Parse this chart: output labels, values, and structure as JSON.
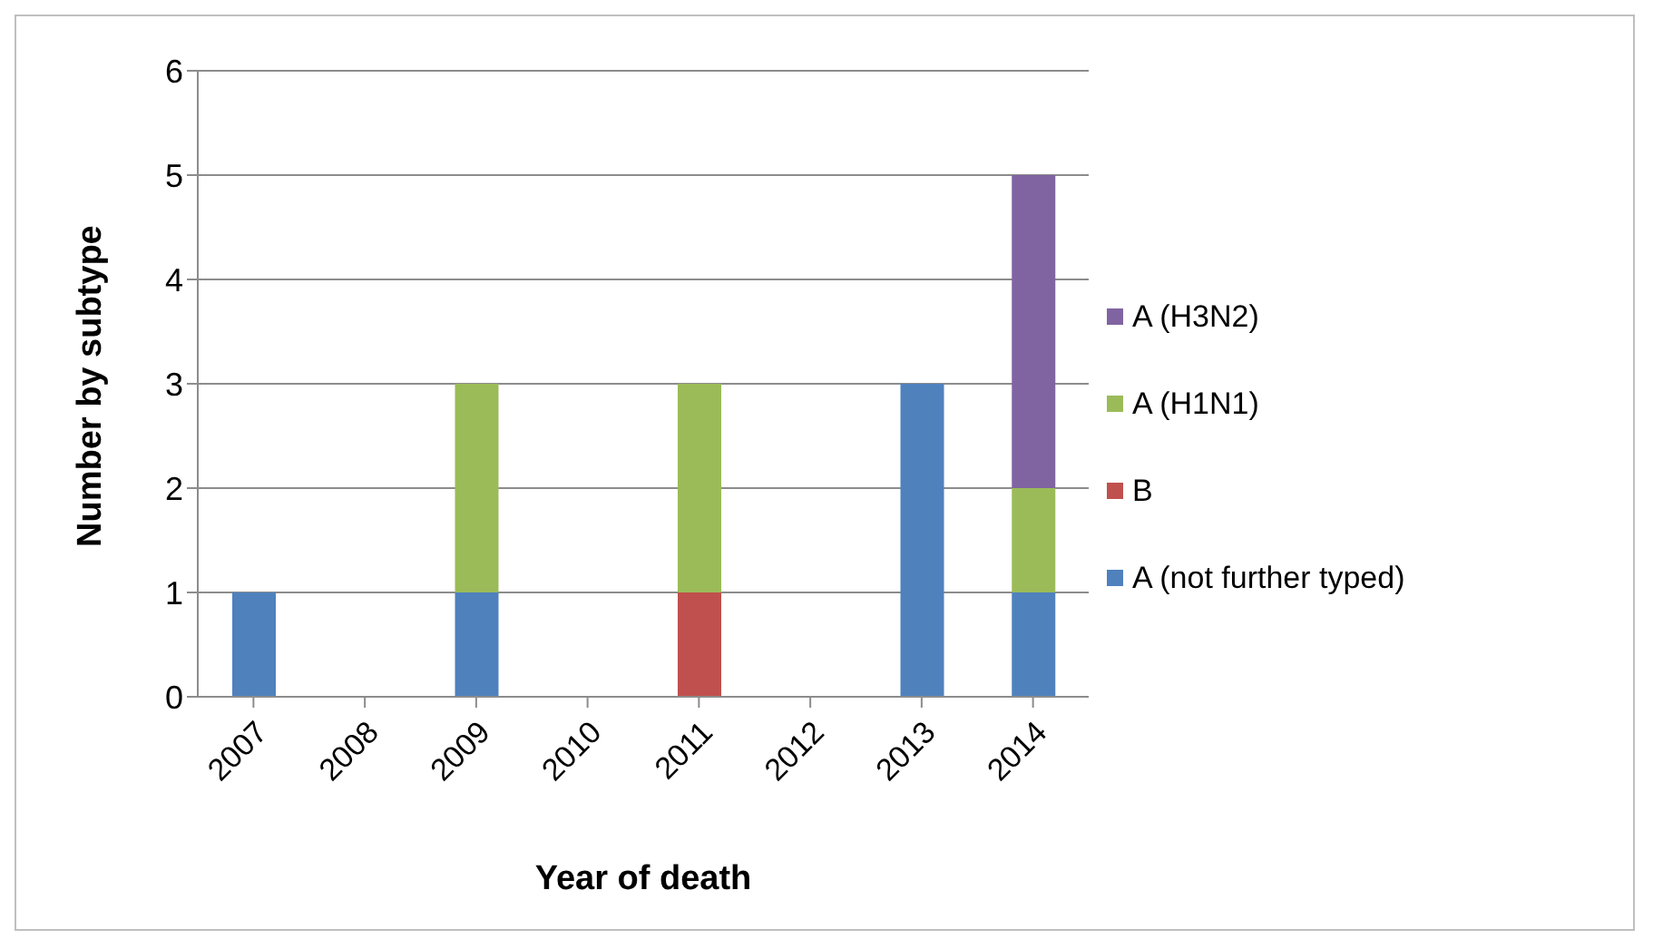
{
  "chart_data": {
    "type": "bar",
    "stacked": true,
    "xlabel": "Year of death",
    "ylabel": "Number by subtype",
    "categories": [
      "2007",
      "2008",
      "2009",
      "2010",
      "2011",
      "2012",
      "2013",
      "2014"
    ],
    "series": [
      {
        "name": "A (not further typed)",
        "color": "#4f81bd",
        "values": [
          1,
          0,
          1,
          0,
          0,
          0,
          3,
          1
        ]
      },
      {
        "name": "B",
        "color": "#c0504d",
        "values": [
          0,
          0,
          0,
          0,
          1,
          0,
          0,
          0
        ]
      },
      {
        "name": "A (H1N1)",
        "color": "#9bbb59",
        "values": [
          0,
          0,
          2,
          0,
          2,
          0,
          0,
          1
        ]
      },
      {
        "name": "A (H3N2)",
        "color": "#8064a2",
        "values": [
          0,
          0,
          0,
          0,
          0,
          0,
          0,
          3
        ]
      }
    ],
    "ylim": [
      0,
      6
    ],
    "yticks": [
      0,
      1,
      2,
      3,
      4,
      5,
      6
    ],
    "grid": "y",
    "legend": "right"
  }
}
